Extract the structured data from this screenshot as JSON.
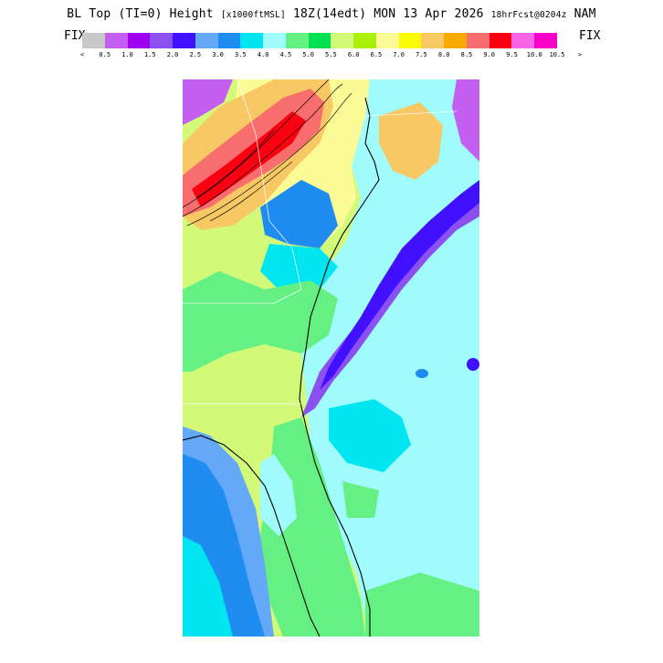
{
  "header": {
    "title_main": "BL Top (TI=0) Height",
    "title_units": "[x1000ftMSL]",
    "title_time": "18Z(14edt) MON 13 Apr 2026",
    "title_fcst": "18hrFcst@0204z",
    "title_model": "NAM"
  },
  "legend": {
    "fix_left": "FIX",
    "fix_right": "FIX",
    "less_than": "<",
    "greater_than": ">",
    "ticks": [
      "0.5",
      "1.0",
      "1.5",
      "2.0",
      "2.5",
      "3.0",
      "3.5",
      "4.0",
      "4.5",
      "5.0",
      "5.5",
      "6.0",
      "6.5",
      "7.0",
      "7.5",
      "8.0",
      "8.5",
      "9.0",
      "9.5",
      "10.0",
      "10.5"
    ],
    "colors": [
      "#c8c8c8",
      "#c45ef0",
      "#a000f0",
      "#8c50f0",
      "#4010ff",
      "#64a8f8",
      "#1e8cf0",
      "#00e6f0",
      "#a0fcfc",
      "#64f082",
      "#00e050",
      "#d2fa78",
      "#aaf00a",
      "#fafa96",
      "#fafa00",
      "#f8c864",
      "#f8aa00",
      "#f86e6e",
      "#fa0010",
      "#f864e6",
      "#f800c8"
    ]
  },
  "map": {
    "region": "US East Coast",
    "field_colors": {
      "ocean": "#a0fcfc",
      "coastal_band": "#8c50f0",
      "inland_yellowgreen": "#d2fa78",
      "greens": "#64f082",
      "blues": "#1e8cf0",
      "peak": "#fa0010"
    }
  }
}
